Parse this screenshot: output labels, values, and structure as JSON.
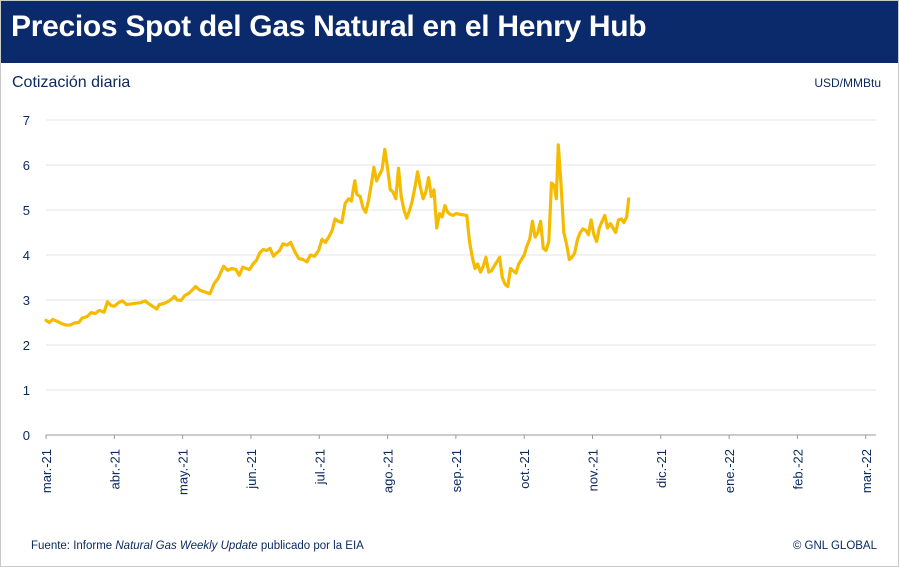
{
  "header": {
    "title": "Precios Spot del Gas Natural en el Henry Hub"
  },
  "chart_header": {
    "subtitle": "Cotización diaria",
    "unit": "USD/MMBtu"
  },
  "footer": {
    "source_prefix": "Fuente: Informe ",
    "source_italic": "Natural Gas Weekly Update",
    "source_suffix": " publicado por la EIA",
    "copyright": "© GNL GLOBAL"
  },
  "colors": {
    "header_bg": "#0a2a6b",
    "line": "#f5bb00",
    "text": "#0b2a60",
    "grid": "#e6e6e6"
  },
  "chart_data": {
    "type": "line",
    "title": "",
    "xlabel": "",
    "ylabel": "",
    "ylim": [
      0,
      7
    ],
    "yticks": [
      "0",
      "1",
      "2",
      "3",
      "4",
      "5",
      "6",
      "7"
    ],
    "grid": "horizontal",
    "categories": [
      "mar.-21",
      "abr.-21",
      "may.-21",
      "jun.-21",
      "jul.-21",
      "ago.-21",
      "sep.-21",
      "oct.-21",
      "nov.-21",
      "dic.-21",
      "ene.-22",
      "feb.-22",
      "mar.-22"
    ],
    "series": [
      {
        "values": [
          [
            0.0,
            2.55
          ],
          [
            0.05,
            2.5
          ],
          [
            0.1,
            2.57
          ],
          [
            0.17,
            2.52
          ],
          [
            0.24,
            2.47
          ],
          [
            0.3,
            2.44
          ],
          [
            0.36,
            2.45
          ],
          [
            0.42,
            2.49
          ],
          [
            0.48,
            2.5
          ],
          [
            0.53,
            2.6
          ],
          [
            0.6,
            2.63
          ],
          [
            0.66,
            2.72
          ],
          [
            0.72,
            2.7
          ],
          [
            0.78,
            2.77
          ],
          [
            0.85,
            2.73
          ],
          [
            0.9,
            2.96
          ],
          [
            0.95,
            2.88
          ],
          [
            1.0,
            2.86
          ],
          [
            1.06,
            2.94
          ],
          [
            1.12,
            2.98
          ],
          [
            1.18,
            2.9
          ],
          [
            1.28,
            2.92
          ],
          [
            1.38,
            2.94
          ],
          [
            1.45,
            2.98
          ],
          [
            1.5,
            2.92
          ],
          [
            1.56,
            2.86
          ],
          [
            1.62,
            2.8
          ],
          [
            1.66,
            2.9
          ],
          [
            1.72,
            2.92
          ],
          [
            1.78,
            2.96
          ],
          [
            1.84,
            3.02
          ],
          [
            1.88,
            3.08
          ],
          [
            1.92,
            3.0
          ],
          [
            1.98,
            2.99
          ],
          [
            2.03,
            3.1
          ],
          [
            2.09,
            3.15
          ],
          [
            2.14,
            3.22
          ],
          [
            2.19,
            3.3
          ],
          [
            2.25,
            3.22
          ],
          [
            2.32,
            3.18
          ],
          [
            2.4,
            3.14
          ],
          [
            2.46,
            3.36
          ],
          [
            2.52,
            3.48
          ],
          [
            2.56,
            3.62
          ],
          [
            2.6,
            3.75
          ],
          [
            2.66,
            3.66
          ],
          [
            2.72,
            3.7
          ],
          [
            2.78,
            3.68
          ],
          [
            2.83,
            3.55
          ],
          [
            2.88,
            3.73
          ],
          [
            2.93,
            3.7
          ],
          [
            2.98,
            3.68
          ],
          [
            3.03,
            3.8
          ],
          [
            3.08,
            3.88
          ],
          [
            3.13,
            4.05
          ],
          [
            3.18,
            4.12
          ],
          [
            3.23,
            4.1
          ],
          [
            3.28,
            4.15
          ],
          [
            3.33,
            3.97
          ],
          [
            3.38,
            4.05
          ],
          [
            3.42,
            4.1
          ],
          [
            3.47,
            4.25
          ],
          [
            3.53,
            4.22
          ],
          [
            3.58,
            4.28
          ],
          [
            3.64,
            4.08
          ],
          [
            3.7,
            3.92
          ],
          [
            3.76,
            3.9
          ],
          [
            3.82,
            3.85
          ],
          [
            3.87,
            4.0
          ],
          [
            3.93,
            3.97
          ],
          [
            3.99,
            4.1
          ],
          [
            4.04,
            4.35
          ],
          [
            4.09,
            4.28
          ],
          [
            4.14,
            4.4
          ],
          [
            4.19,
            4.55
          ],
          [
            4.23,
            4.8
          ],
          [
            4.28,
            4.75
          ],
          [
            4.33,
            4.72
          ],
          [
            4.38,
            5.15
          ],
          [
            4.43,
            5.25
          ],
          [
            4.47,
            5.2
          ],
          [
            4.52,
            5.65
          ],
          [
            4.55,
            5.35
          ],
          [
            4.6,
            5.3
          ],
          [
            4.64,
            5.05
          ],
          [
            4.68,
            4.95
          ],
          [
            4.72,
            5.2
          ],
          [
            4.76,
            5.55
          ],
          [
            4.8,
            5.95
          ],
          [
            4.84,
            5.65
          ],
          [
            4.88,
            5.78
          ],
          [
            4.92,
            5.9
          ],
          [
            4.96,
            6.35
          ],
          [
            5.0,
            5.92
          ],
          [
            5.04,
            5.45
          ],
          [
            5.08,
            5.4
          ],
          [
            5.12,
            5.25
          ],
          [
            5.16,
            5.93
          ],
          [
            5.2,
            5.3
          ],
          [
            5.24,
            5.0
          ],
          [
            5.28,
            4.82
          ],
          [
            5.32,
            4.98
          ],
          [
            5.36,
            5.2
          ],
          [
            5.4,
            5.5
          ],
          [
            5.44,
            5.85
          ],
          [
            5.48,
            5.5
          ],
          [
            5.52,
            5.25
          ],
          [
            5.56,
            5.4
          ],
          [
            5.6,
            5.72
          ],
          [
            5.64,
            5.3
          ],
          [
            5.68,
            5.45
          ],
          [
            5.72,
            4.6
          ],
          [
            5.76,
            4.92
          ],
          [
            5.8,
            4.85
          ],
          [
            5.84,
            5.1
          ],
          [
            5.88,
            4.95
          ],
          [
            5.92,
            4.9
          ],
          [
            5.96,
            4.88
          ],
          [
            6.0,
            4.92
          ],
          [
            6.08,
            4.9
          ],
          [
            6.16,
            4.88
          ],
          [
            6.2,
            4.3
          ],
          [
            6.24,
            3.95
          ],
          [
            6.28,
            3.7
          ],
          [
            6.32,
            3.8
          ],
          [
            6.36,
            3.62
          ],
          [
            6.4,
            3.75
          ],
          [
            6.44,
            3.95
          ],
          [
            6.48,
            3.62
          ],
          [
            6.52,
            3.65
          ],
          [
            6.56,
            3.75
          ],
          [
            6.6,
            3.85
          ],
          [
            6.64,
            3.95
          ],
          [
            6.68,
            3.5
          ],
          [
            6.72,
            3.35
          ],
          [
            6.76,
            3.3
          ],
          [
            6.8,
            3.7
          ],
          [
            6.84,
            3.65
          ],
          [
            6.88,
            3.6
          ],
          [
            6.92,
            3.8
          ],
          [
            6.96,
            3.9
          ],
          [
            7.0,
            4.0
          ],
          [
            7.04,
            4.2
          ],
          [
            7.08,
            4.35
          ],
          [
            7.12,
            4.75
          ],
          [
            7.16,
            4.4
          ],
          [
            7.2,
            4.5
          ],
          [
            7.24,
            4.75
          ],
          [
            7.28,
            4.15
          ],
          [
            7.32,
            4.1
          ],
          [
            7.36,
            4.3
          ],
          [
            7.4,
            5.6
          ],
          [
            7.44,
            5.55
          ],
          [
            7.47,
            5.25
          ],
          [
            7.5,
            6.45
          ],
          [
            7.54,
            5.55
          ],
          [
            7.58,
            4.5
          ],
          [
            7.62,
            4.25
          ],
          [
            7.66,
            3.9
          ],
          [
            7.7,
            3.95
          ],
          [
            7.74,
            4.05
          ],
          [
            7.78,
            4.35
          ],
          [
            7.82,
            4.5
          ],
          [
            7.86,
            4.58
          ],
          [
            7.9,
            4.55
          ],
          [
            7.94,
            4.45
          ],
          [
            7.98,
            4.78
          ],
          [
            8.02,
            4.45
          ],
          [
            8.06,
            4.3
          ],
          [
            8.1,
            4.6
          ],
          [
            8.14,
            4.75
          ],
          [
            8.18,
            4.88
          ],
          [
            8.22,
            4.6
          ],
          [
            8.26,
            4.7
          ],
          [
            8.3,
            4.6
          ],
          [
            8.34,
            4.5
          ],
          [
            8.38,
            4.78
          ],
          [
            8.42,
            4.8
          ],
          [
            8.46,
            4.72
          ],
          [
            8.5,
            4.85
          ],
          [
            8.53,
            5.25
          ]
        ]
      }
    ]
  }
}
